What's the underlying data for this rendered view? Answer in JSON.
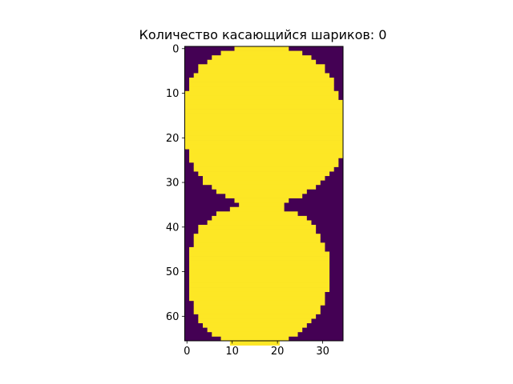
{
  "chart_data": {
    "type": "heatmap",
    "title": "Количество касающийся шариков: 0",
    "xlabel": "",
    "ylabel": "",
    "columns": 35,
    "rows": 66,
    "xlim": [
      -0.5,
      34.5
    ],
    "ylim": [
      65.5,
      -0.5
    ],
    "x_ticks": [
      0,
      10,
      20,
      30
    ],
    "y_ticks": [
      0,
      10,
      20,
      30,
      40,
      50,
      60
    ],
    "grid": false,
    "colors": {
      "background": "#440154",
      "foreground": "#fde725"
    },
    "values_note_skip": true,
    "upper_ball_yellow_column_ranges": [
      [
        11,
        22
      ],
      [
        8,
        25
      ],
      [
        6,
        27
      ],
      [
        5,
        28
      ],
      [
        3,
        30
      ],
      [
        3,
        30
      ],
      [
        2,
        31
      ],
      [
        1,
        32
      ],
      [
        1,
        32
      ],
      [
        1,
        32
      ],
      [
        0,
        33
      ],
      [
        0,
        33
      ],
      [
        0,
        34
      ],
      [
        0,
        34
      ],
      [
        0,
        34
      ],
      [
        0,
        34
      ],
      [
        0,
        34
      ],
      [
        0,
        34
      ],
      [
        0,
        34
      ],
      [
        0,
        34
      ],
      [
        0,
        34
      ],
      [
        0,
        34
      ],
      [
        0,
        34
      ],
      [
        1,
        34
      ],
      [
        1,
        34
      ],
      [
        1,
        33
      ],
      [
        2,
        33
      ],
      [
        2,
        32
      ],
      [
        3,
        31
      ],
      [
        4,
        30
      ],
      [
        4,
        29
      ],
      [
        6,
        28
      ],
      [
        7,
        26
      ],
      [
        9,
        25
      ],
      [
        11,
        22
      ],
      [
        12,
        21
      ]
    ],
    "lower_ball_yellow_column_ranges": [
      [
        10,
        21
      ],
      [
        7,
        24
      ],
      [
        6,
        26
      ],
      [
        5,
        27
      ],
      [
        3,
        28
      ],
      [
        3,
        28
      ],
      [
        2,
        29
      ],
      [
        2,
        29
      ],
      [
        2,
        30
      ],
      [
        1,
        30
      ],
      [
        1,
        31
      ],
      [
        1,
        31
      ],
      [
        1,
        31
      ],
      [
        1,
        31
      ],
      [
        1,
        31
      ],
      [
        1,
        31
      ],
      [
        1,
        31
      ],
      [
        1,
        31
      ],
      [
        1,
        31
      ],
      [
        1,
        30
      ],
      [
        1,
        30
      ],
      [
        2,
        30
      ],
      [
        2,
        29
      ],
      [
        2,
        29
      ],
      [
        3,
        28
      ],
      [
        3,
        27
      ],
      [
        4,
        26
      ],
      [
        5,
        25
      ],
      [
        6,
        24
      ],
      [
        8,
        22
      ],
      [
        10,
        20
      ]
    ]
  }
}
